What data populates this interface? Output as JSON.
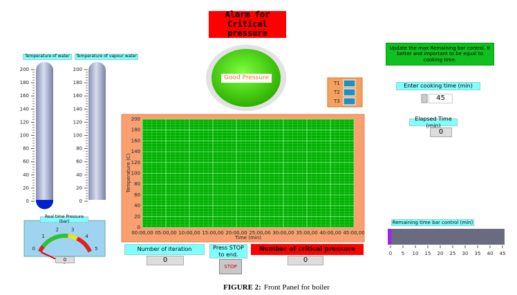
{
  "alarm": {
    "lines": [
      "Alarm for Critical",
      "pressure"
    ]
  },
  "indicator": {
    "label": "Good Pressure"
  },
  "note": {
    "text": "Update the max Remaining bar control. It better and important to be equal to cooking time."
  },
  "thermometers": [
    {
      "label": "Temperature of water",
      "ticks": [
        0,
        20,
        40,
        60,
        80,
        100,
        120,
        140,
        160,
        180,
        200
      ]
    },
    {
      "label": "Temperature of vapour water",
      "ticks": [
        0,
        20,
        40,
        60,
        80,
        100,
        120,
        140,
        160,
        180,
        200
      ]
    }
  ],
  "gauge": {
    "label": "Real time Pressure (bar)",
    "ticks": [
      0,
      1,
      2,
      3,
      4,
      5
    ],
    "value": 0
  },
  "legend": [
    "T1",
    "T2",
    "T3"
  ],
  "graph": {
    "y_label": "Temperature (C)",
    "x_label": "Time (min)",
    "yticks": [
      0,
      20,
      40,
      60,
      80,
      100,
      120,
      140,
      160,
      180,
      200
    ],
    "xticks": [
      "00:00,00",
      "05:00,00",
      "10:00,00",
      "15:00,00",
      "20:00,00",
      "25:00,00",
      "30:00,00",
      "35:00,00",
      "40:00,00",
      "45:00,00"
    ]
  },
  "cooking_time": {
    "label": "Enter cooking time (min)",
    "value": 45
  },
  "elapsed_time": {
    "label": "Elapsed Time (min)",
    "value": 0
  },
  "remaining_bar": {
    "label": "Remaining time bar control (min)",
    "ticks": [
      0,
      5,
      10,
      15,
      20,
      25,
      30,
      35,
      40,
      45
    ]
  },
  "iterations": {
    "label": "Number of iteration",
    "value": 0
  },
  "stop": {
    "label": "Press STOP to end.",
    "button": "STOP"
  },
  "critical": {
    "label": "Number of critical pressure",
    "value": 0
  },
  "caption": {
    "figure": "FIGURE 2:",
    "text": "Front Panel for boiler"
  }
}
